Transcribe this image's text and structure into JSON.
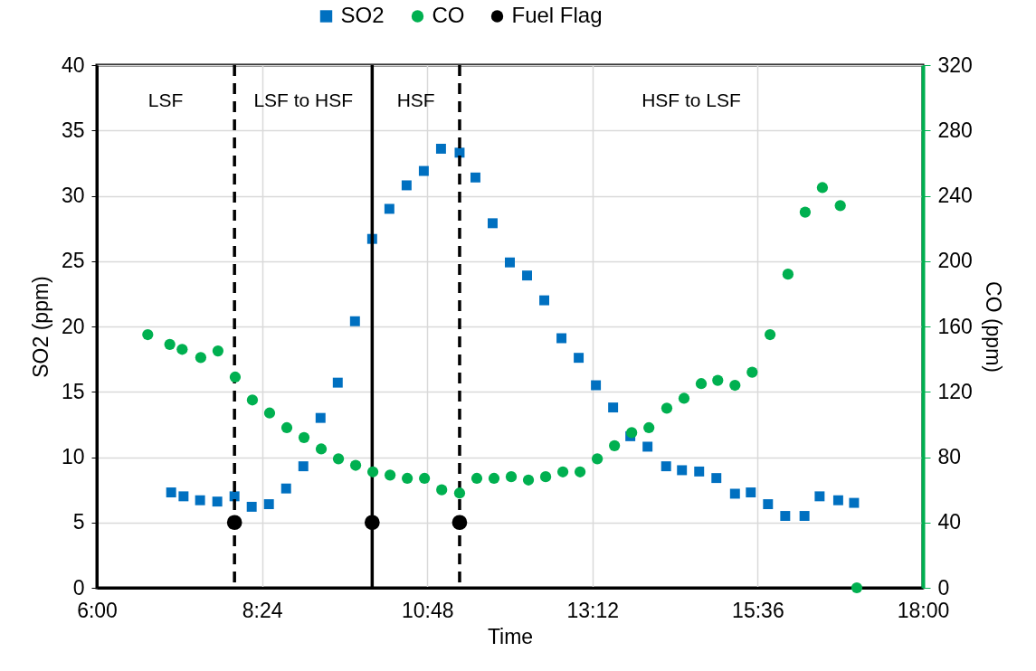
{
  "chart_data": {
    "type": "scatter",
    "xlabel": "Time",
    "ylabel": "SO2 (ppm)",
    "y2label": "CO (ppm)",
    "xlim": [
      6,
      18
    ],
    "xticks": [
      {
        "value": 6,
        "label": "6:00"
      },
      {
        "value": 8.4,
        "label": "8:24"
      },
      {
        "value": 10.8,
        "label": "10:48"
      },
      {
        "value": 13.2,
        "label": "13:12"
      },
      {
        "value": 15.6,
        "label": "15:36"
      },
      {
        "value": 18,
        "label": "18:00"
      }
    ],
    "ylim": [
      0,
      40
    ],
    "yticks": [
      0,
      5,
      10,
      15,
      20,
      25,
      30,
      35,
      40
    ],
    "y2lim": [
      0,
      320
    ],
    "y2ticks": [
      0,
      40,
      80,
      120,
      160,
      200,
      240,
      280,
      320
    ],
    "grid": true,
    "legend": "top",
    "series": [
      {
        "name": "SO2",
        "color": "#0070c0",
        "marker": "square",
        "x": [
          7.08,
          7.26,
          7.5,
          7.75,
          8.0,
          8.25,
          8.5,
          8.75,
          9.0,
          9.25,
          9.5,
          9.75,
          10.0,
          10.25,
          10.5,
          10.75,
          11.0,
          11.27,
          11.5,
          11.75,
          12.0,
          12.25,
          12.5,
          12.75,
          13.0,
          13.25,
          13.5,
          13.75,
          14.0,
          14.27,
          14.5,
          14.75,
          15.0,
          15.27,
          15.5,
          15.75,
          16.0,
          16.28,
          16.5,
          16.77,
          17.0
        ],
        "values": [
          7.3,
          7.0,
          6.7,
          6.6,
          7.0,
          6.2,
          6.4,
          7.6,
          9.3,
          13.0,
          15.7,
          20.4,
          26.7,
          29.0,
          30.8,
          31.9,
          33.6,
          33.3,
          31.4,
          27.9,
          24.9,
          23.9,
          22.0,
          19.1,
          17.6,
          15.5,
          13.8,
          11.6,
          10.8,
          9.3,
          9.0,
          8.9,
          8.4,
          7.2,
          7.3,
          6.4,
          5.5,
          5.5,
          7.0,
          6.7,
          6.5
        ]
      },
      {
        "name": "CO",
        "color": "#00b050",
        "marker": "circle",
        "axis": "y2",
        "x": [
          6.74,
          7.06,
          7.24,
          7.51,
          7.76,
          8.01,
          8.26,
          8.51,
          8.76,
          9.01,
          9.26,
          9.51,
          9.76,
          10.01,
          10.26,
          10.51,
          10.76,
          11.01,
          11.27,
          11.52,
          11.77,
          12.02,
          12.27,
          12.52,
          12.77,
          13.02,
          13.27,
          13.52,
          13.77,
          14.02,
          14.28,
          14.53,
          14.78,
          15.02,
          15.27,
          15.52,
          15.78,
          16.04,
          16.29,
          16.54,
          16.8,
          17.04
        ],
        "values": [
          155,
          149,
          146,
          141,
          145,
          129,
          115,
          107,
          98,
          92,
          85,
          79,
          75,
          71,
          69,
          67,
          67,
          60,
          58,
          67,
          67,
          68,
          66,
          68,
          71,
          71,
          79,
          87,
          95,
          98,
          110,
          116,
          125,
          127,
          124,
          132,
          155,
          192,
          230,
          245,
          234,
          0
        ]
      },
      {
        "name": "Fuel Flag",
        "color": "#000000",
        "marker": "circle",
        "x": [
          8.0,
          10.0,
          11.27
        ],
        "values": [
          5,
          5,
          5
        ]
      }
    ],
    "ref_lines": [
      {
        "axis": "x",
        "value": 8.0,
        "color": "#000000",
        "line_style": "dashed"
      },
      {
        "axis": "x",
        "value": 10.0,
        "color": "#000000",
        "line_style": "solid"
      },
      {
        "axis": "x",
        "value": 11.27,
        "color": "#000000",
        "line_style": "dashed"
      }
    ],
    "annotations": [
      "LSF",
      "LSF to HSF",
      "HSF",
      "HSF to LSF"
    ]
  }
}
